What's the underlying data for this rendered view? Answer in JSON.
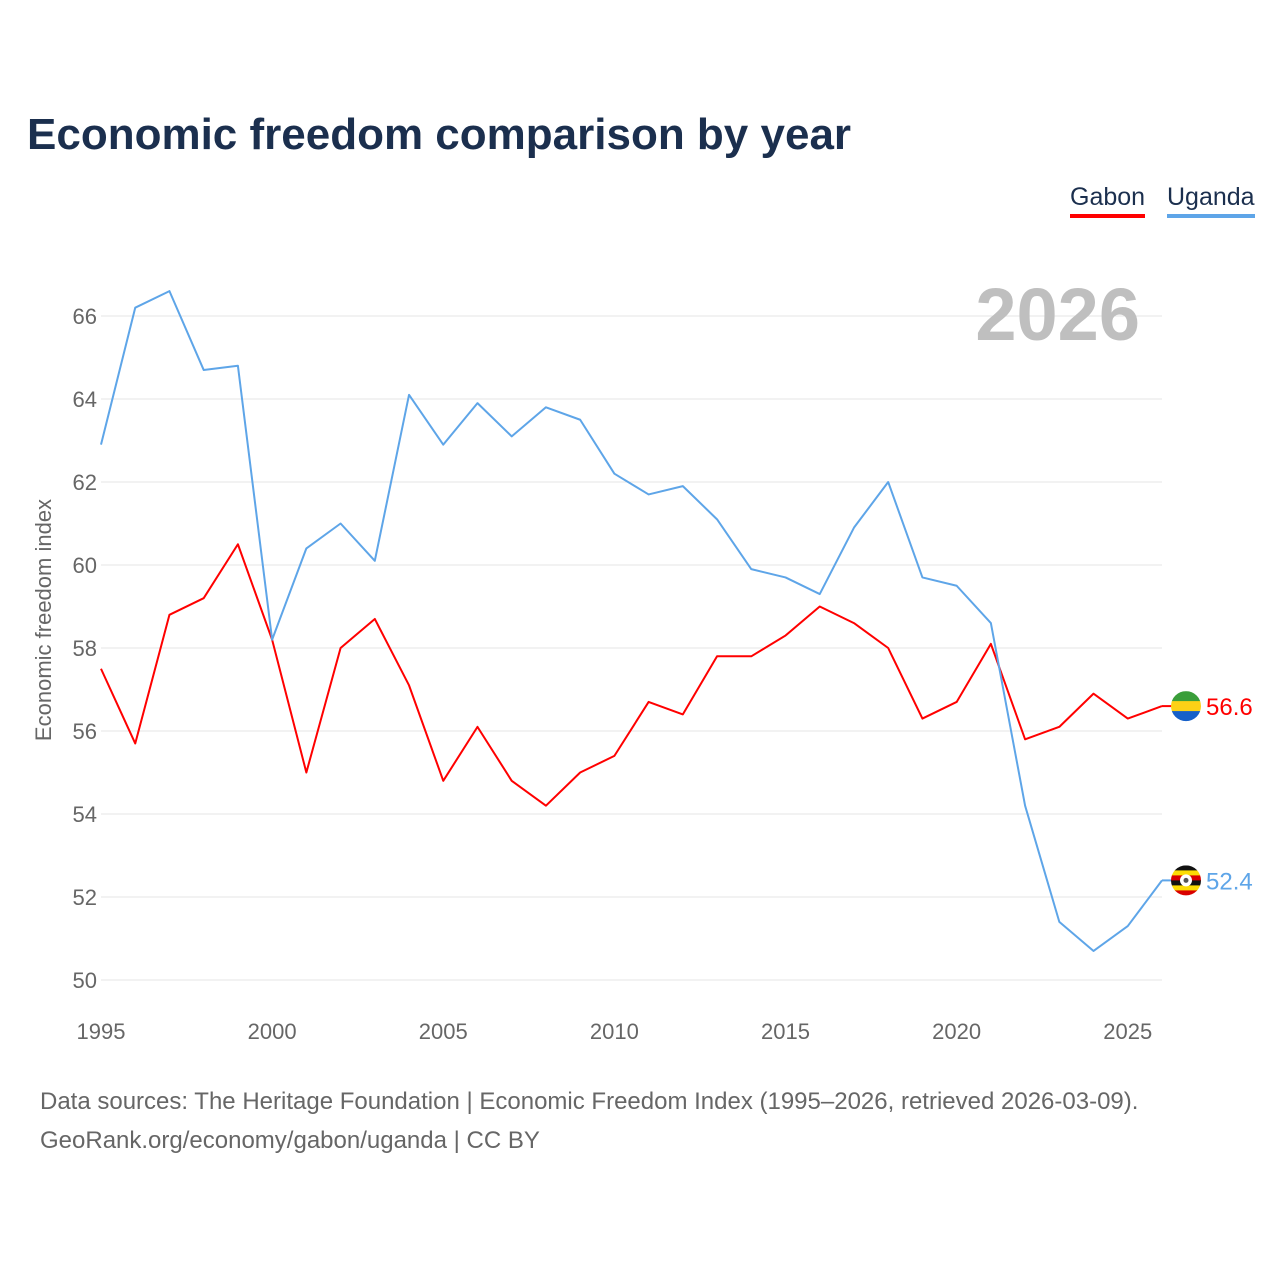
{
  "title": "Economic freedom comparison by year",
  "legend": [
    {
      "name": "Gabon",
      "color": "#ff0000"
    },
    {
      "name": "Uganda",
      "color": "#5ea5e8"
    }
  ],
  "year_watermark": "2026",
  "footer": {
    "sources": "Data sources: The Heritage Foundation | Economic Freedom Index (1995–2026, retrieved 2026-03-09).",
    "credit": "GeoRank.org/economy/gabon/uganda | CC BY"
  },
  "chart_data": {
    "type": "line",
    "title": "Economic freedom comparison by year",
    "xlabel": "",
    "ylabel": "Economic freedom index",
    "x": [
      1995,
      1996,
      1997,
      1998,
      1999,
      2000,
      2001,
      2002,
      2003,
      2004,
      2005,
      2006,
      2007,
      2008,
      2009,
      2010,
      2011,
      2012,
      2013,
      2014,
      2015,
      2016,
      2017,
      2018,
      2019,
      2020,
      2021,
      2022,
      2023,
      2024,
      2025,
      2026
    ],
    "xlim": [
      1995,
      2026
    ],
    "ylim": [
      50,
      67
    ],
    "xticks": [
      "1995",
      "2000",
      "2005",
      "2010",
      "2015",
      "2020",
      "2025"
    ],
    "yticks": [
      "50",
      "52",
      "54",
      "56",
      "58",
      "60",
      "62",
      "64",
      "66"
    ],
    "grid": true,
    "legend_position": "top-right",
    "series": [
      {
        "name": "Gabon",
        "color": "#ff0000",
        "end_label": "56.6",
        "values": [
          57.5,
          55.7,
          58.8,
          59.2,
          60.5,
          58.2,
          55.0,
          58.0,
          58.7,
          57.1,
          54.8,
          56.1,
          54.8,
          54.2,
          55.0,
          55.4,
          56.7,
          56.4,
          57.8,
          57.8,
          58.3,
          59.0,
          58.6,
          58.0,
          56.3,
          56.7,
          58.1,
          55.8,
          56.1,
          56.9,
          56.3,
          56.6
        ]
      },
      {
        "name": "Uganda",
        "color": "#5ea5e8",
        "end_label": "52.4",
        "values": [
          62.9,
          66.2,
          66.6,
          64.7,
          64.8,
          58.2,
          60.4,
          61.0,
          60.1,
          64.1,
          62.9,
          63.9,
          63.1,
          63.8,
          63.5,
          62.2,
          61.7,
          61.9,
          61.1,
          59.9,
          59.7,
          59.3,
          60.9,
          62.0,
          59.7,
          59.5,
          58.6,
          54.2,
          51.4,
          50.7,
          51.3,
          52.4
        ]
      }
    ]
  }
}
